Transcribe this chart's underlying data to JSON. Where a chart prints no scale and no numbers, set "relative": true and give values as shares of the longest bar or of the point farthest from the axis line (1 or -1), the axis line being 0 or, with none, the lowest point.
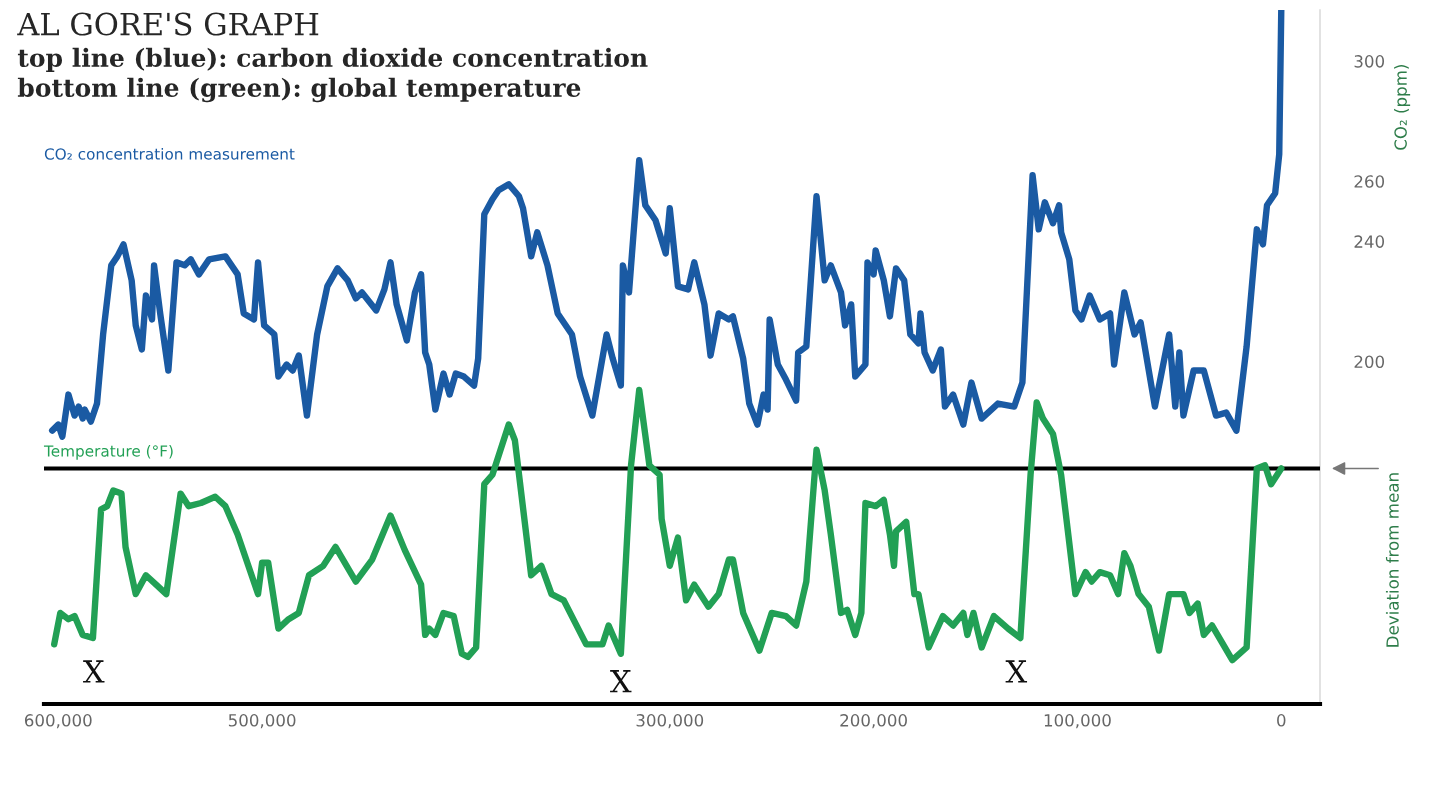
{
  "chart_data": [
    {
      "type": "line",
      "title": "AL GORE'S GRAPH",
      "subtitle": "top line (blue): carbon dioxide concentration\nbottom line (green): global temperature",
      "ylabel": "CO₂ (ppm)",
      "xlim": [
        607000,
        -19000
      ],
      "ylim": [
        86,
        317
      ],
      "yticks": [
        200,
        240,
        260,
        300
      ],
      "tick_labels": "y",
      "grid": false,
      "legend": false,
      "line_style": "solid",
      "series": [
        {
          "name": "CO₂ concentration measurement",
          "color": "#1a5aa3",
          "x": [
            603000,
            600000,
            598000,
            595000,
            592000,
            590000,
            588000,
            587000,
            584000,
            581000,
            578000,
            574000,
            571000,
            568000,
            564000,
            562000,
            559000,
            557000,
            554000,
            553000,
            550000,
            546000,
            542000,
            538000,
            535000,
            531000,
            526000,
            518000,
            512000,
            509000,
            504000,
            502000,
            499000,
            494000,
            492000,
            488000,
            485000,
            482000,
            478000,
            473000,
            468000,
            463000,
            458000,
            454000,
            451000,
            444000,
            440000,
            437000,
            434000,
            429000,
            425000,
            422000,
            420000,
            418000,
            415000,
            411000,
            408000,
            405000,
            401000,
            396000,
            394000,
            391000,
            387000,
            384000,
            379000,
            374000,
            372000,
            368000,
            365000,
            360000,
            355000,
            348000,
            344000,
            338000,
            331000,
            328000,
            324000,
            323000,
            320000,
            315000,
            312000,
            307000,
            302000,
            300000,
            296000,
            291000,
            288000,
            283000,
            280000,
            276000,
            271000,
            269000,
            264000,
            261000,
            257000,
            254000,
            252000,
            251000,
            247000,
            243000,
            238000,
            237000,
            233000,
            228000,
            224000,
            221000,
            216000,
            214000,
            211000,
            209000,
            204000,
            203000,
            200000,
            199000,
            195000,
            192000,
            189000,
            185000,
            182000,
            178000,
            177000,
            175000,
            171000,
            167000,
            165000,
            161000,
            156000,
            152000,
            147000,
            139000,
            131000,
            127000,
            122000,
            119000,
            116000,
            112000,
            109000,
            108000,
            104000,
            101000,
            98000,
            94000,
            89000,
            84000,
            82000,
            77000,
            72000,
            69000,
            62000,
            55000,
            52000,
            50000,
            48000,
            43000,
            38000,
            32000,
            27000,
            22000,
            17000,
            12000,
            9000,
            7000,
            3000,
            1000,
            0
          ],
          "values": [
            177,
            179,
            175,
            189,
            182,
            185,
            181,
            184,
            180,
            186,
            209,
            232,
            235,
            239,
            227,
            212,
            204,
            222,
            214,
            232,
            216,
            197,
            233,
            232,
            234,
            229,
            234,
            235,
            229,
            216,
            214,
            233,
            212,
            209,
            195,
            199,
            197,
            202,
            182,
            209,
            225,
            231,
            227,
            221,
            223,
            217,
            224,
            233,
            219,
            207,
            223,
            229,
            203,
            199,
            184,
            196,
            189,
            196,
            195,
            192,
            201,
            249,
            254,
            257,
            259,
            255,
            251,
            235,
            243,
            232,
            216,
            209,
            195,
            182,
            209,
            201,
            192,
            232,
            223,
            267,
            252,
            247,
            236,
            251,
            225,
            224,
            233,
            219,
            202,
            216,
            214,
            215,
            201,
            186,
            179,
            189,
            184,
            214,
            199,
            194,
            187,
            203,
            205,
            255,
            227,
            232,
            223,
            212,
            219,
            195,
            199,
            233,
            229,
            237,
            227,
            215,
            231,
            227,
            209,
            206,
            216,
            203,
            197,
            204,
            185,
            189,
            179,
            193,
            181,
            186,
            185,
            193,
            262,
            244,
            253,
            246,
            252,
            243,
            234,
            217,
            214,
            222,
            214,
            216,
            199,
            223,
            209,
            213,
            185,
            209,
            185,
            203,
            182,
            197,
            197,
            182,
            183,
            177,
            205,
            244,
            239,
            252,
            256,
            269,
            317
          ]
        }
      ]
    },
    {
      "type": "line",
      "relative": true,
      "xlim": [
        607000,
        -19000
      ],
      "xticks": [
        {
          "value": 600000,
          "label": "600,000"
        },
        {
          "value": 500000,
          "label": "500,000"
        },
        {
          "value": 300000,
          "label": "300,000"
        },
        {
          "value": 200000,
          "label": "200,000"
        },
        {
          "value": 100000,
          "label": "100,000"
        },
        0
      ],
      "tick_labels": "x",
      "grid": false,
      "legend": false,
      "line_style": "solid",
      "ref_lines": [
        {
          "axis": "y",
          "value": 0.75,
          "label": "Deviation from mean",
          "color": "#000000"
        }
      ],
      "annotations": [
        "X",
        "X",
        "X"
      ],
      "series": [
        {
          "name": "Temperature (°F)",
          "color": "#22a055",
          "x": [
            602000,
            599000,
            595000,
            592000,
            588000,
            583000,
            579000,
            576000,
            573000,
            569000,
            567000,
            562000,
            557000,
            552000,
            547000,
            540000,
            536000,
            530000,
            523000,
            518000,
            512000,
            502000,
            500000,
            497000,
            492000,
            487000,
            482000,
            477000,
            470000,
            464000,
            454000,
            446000,
            437000,
            430000,
            422000,
            420000,
            418000,
            415000,
            411000,
            406000,
            402000,
            399000,
            395000,
            391000,
            387000,
            379000,
            376000,
            368000,
            363000,
            358000,
            352000,
            341000,
            333000,
            330000,
            324000,
            319000,
            315000,
            310000,
            305000,
            304000,
            300000,
            296000,
            292000,
            288000,
            281000,
            276000,
            271000,
            269000,
            264000,
            256000,
            250000,
            243000,
            238000,
            233000,
            228000,
            224000,
            221000,
            216000,
            213000,
            209000,
            206000,
            204000,
            199000,
            195000,
            192000,
            190000,
            189000,
            184000,
            180000,
            178000,
            173000,
            166000,
            161000,
            156000,
            154000,
            151000,
            147000,
            141000,
            134000,
            128000,
            123000,
            120000,
            117000,
            112000,
            108000,
            101000,
            96000,
            93000,
            89000,
            84000,
            80000,
            77000,
            74000,
            70000,
            65000,
            60000,
            55000,
            51000,
            48000,
            45000,
            41000,
            38000,
            34000,
            24000,
            17000,
            12000,
            8000,
            5000,
            0
          ],
          "values": [
            0.19,
            0.29,
            0.27,
            0.28,
            0.22,
            0.21,
            0.62,
            0.63,
            0.68,
            0.67,
            0.5,
            0.35,
            0.41,
            0.38,
            0.35,
            0.67,
            0.63,
            0.64,
            0.66,
            0.63,
            0.54,
            0.35,
            0.45,
            0.45,
            0.24,
            0.27,
            0.29,
            0.41,
            0.44,
            0.5,
            0.39,
            0.46,
            0.6,
            0.49,
            0.38,
            0.22,
            0.24,
            0.22,
            0.29,
            0.28,
            0.16,
            0.15,
            0.18,
            0.7,
            0.73,
            0.89,
            0.84,
            0.41,
            0.44,
            0.35,
            0.33,
            0.19,
            0.19,
            0.25,
            0.16,
            0.76,
            1.0,
            0.76,
            0.73,
            0.59,
            0.44,
            0.53,
            0.33,
            0.38,
            0.31,
            0.35,
            0.46,
            0.46,
            0.29,
            0.17,
            0.29,
            0.28,
            0.25,
            0.39,
            0.81,
            0.68,
            0.54,
            0.29,
            0.3,
            0.22,
            0.29,
            0.64,
            0.63,
            0.65,
            0.54,
            0.44,
            0.55,
            0.58,
            0.35,
            0.35,
            0.18,
            0.28,
            0.25,
            0.29,
            0.22,
            0.29,
            0.18,
            0.28,
            0.24,
            0.21,
            0.73,
            0.96,
            0.91,
            0.86,
            0.73,
            0.35,
            0.42,
            0.39,
            0.42,
            0.41,
            0.35,
            0.48,
            0.44,
            0.35,
            0.31,
            0.17,
            0.35,
            0.35,
            0.35,
            0.29,
            0.32,
            0.22,
            0.25,
            0.14,
            0.18,
            0.75,
            0.76,
            0.7,
            0.75
          ]
        }
      ]
    }
  ]
}
